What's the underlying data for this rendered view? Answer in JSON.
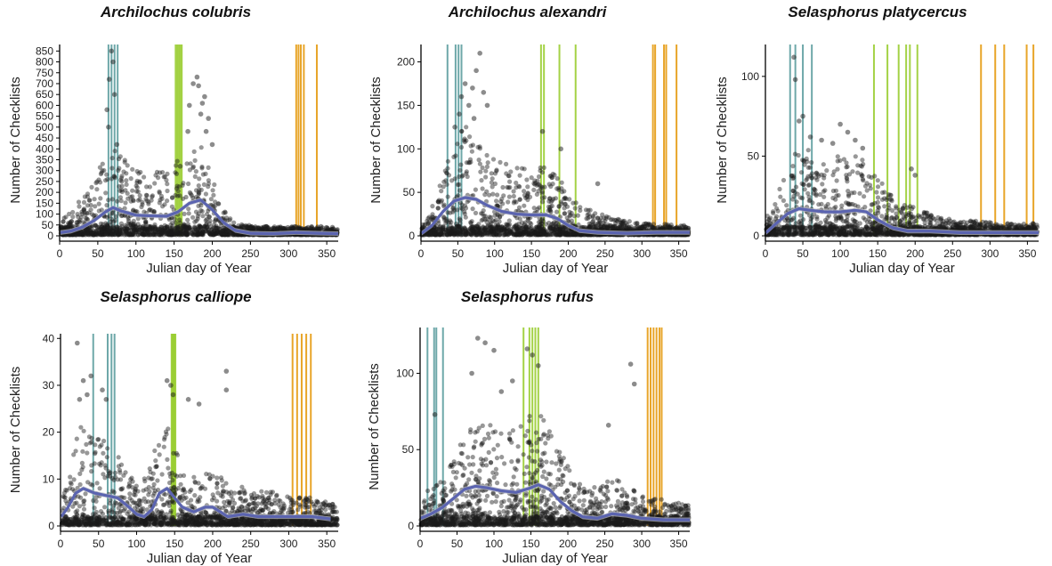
{
  "colors": {
    "points": "#1a1a1a",
    "smooth": "#5b64b0",
    "ribbon": "#b9bbc4",
    "spring": "#5e9ea0",
    "breeding": "#9acd32",
    "fall": "#e59b12"
  },
  "chart_data": [
    {
      "type": "scatter",
      "title": "Archilochus colubris",
      "xlabel": "Julian day of Year",
      "ylabel": "Number of Checklists",
      "xlim": [
        0,
        365
      ],
      "ylim": [
        0,
        880
      ],
      "xticks": [
        0,
        50,
        100,
        150,
        200,
        250,
        300,
        350
      ],
      "yticks": [
        0,
        50,
        100,
        150,
        200,
        250,
        300,
        350,
        400,
        450,
        500,
        550,
        600,
        650,
        700,
        750,
        800,
        850
      ],
      "smooth": [
        [
          1,
          15
        ],
        [
          15,
          22
        ],
        [
          30,
          40
        ],
        [
          45,
          70
        ],
        [
          60,
          110
        ],
        [
          70,
          130
        ],
        [
          80,
          115
        ],
        [
          100,
          95
        ],
        [
          120,
          92
        ],
        [
          140,
          90
        ],
        [
          155,
          110
        ],
        [
          170,
          150
        ],
        [
          185,
          165
        ],
        [
          200,
          120
        ],
        [
          215,
          60
        ],
        [
          230,
          25
        ],
        [
          250,
          12
        ],
        [
          280,
          10
        ],
        [
          310,
          15
        ],
        [
          340,
          12
        ],
        [
          365,
          10
        ]
      ],
      "spread": [
        [
          0,
          60
        ],
        [
          15,
          120
        ],
        [
          40,
          220
        ],
        [
          60,
          380
        ],
        [
          70,
          420
        ],
        [
          90,
          330
        ],
        [
          120,
          290
        ],
        [
          145,
          320
        ],
        [
          165,
          420
        ],
        [
          180,
          460
        ],
        [
          195,
          330
        ],
        [
          210,
          150
        ],
        [
          230,
          60
        ],
        [
          260,
          45
        ],
        [
          300,
          40
        ],
        [
          330,
          35
        ],
        [
          365,
          30
        ]
      ],
      "outliers": [
        [
          62,
          580
        ],
        [
          65,
          720
        ],
        [
          68,
          850
        ],
        [
          70,
          800
        ],
        [
          72,
          650
        ],
        [
          64,
          500
        ],
        [
          75,
          420
        ],
        [
          170,
          600
        ],
        [
          175,
          700
        ],
        [
          180,
          730
        ],
        [
          185,
          560
        ],
        [
          190,
          640
        ],
        [
          195,
          540
        ],
        [
          168,
          480
        ],
        [
          158,
          320
        ],
        [
          200,
          420
        ],
        [
          192,
          480
        ],
        [
          187,
          610
        ],
        [
          182,
          690
        ]
      ],
      "spring_lines": [
        64,
        68,
        72,
        76
      ],
      "breeding_lines": [
        152,
        154,
        156,
        158,
        160
      ],
      "fall_lines": [
        310,
        313,
        316,
        320,
        337
      ]
    },
    {
      "type": "scatter",
      "title": "Archilochus alexandri",
      "xlabel": "Julian day of Year",
      "ylabel": "Number of Checklists",
      "xlim": [
        0,
        365
      ],
      "ylim": [
        0,
        220
      ],
      "xticks": [
        0,
        50,
        100,
        150,
        200,
        250,
        300,
        350
      ],
      "yticks": [
        0,
        50,
        100,
        150,
        200
      ],
      "smooth": [
        [
          1,
          3
        ],
        [
          15,
          12
        ],
        [
          30,
          28
        ],
        [
          45,
          40
        ],
        [
          60,
          44
        ],
        [
          75,
          42
        ],
        [
          90,
          35
        ],
        [
          110,
          28
        ],
        [
          130,
          25
        ],
        [
          150,
          24
        ],
        [
          170,
          24
        ],
        [
          185,
          20
        ],
        [
          200,
          12
        ],
        [
          215,
          6
        ],
        [
          240,
          4
        ],
        [
          280,
          3
        ],
        [
          320,
          4
        ],
        [
          365,
          4
        ]
      ],
      "spread": [
        [
          0,
          15
        ],
        [
          15,
          35
        ],
        [
          30,
          70
        ],
        [
          45,
          110
        ],
        [
          60,
          130
        ],
        [
          75,
          125
        ],
        [
          90,
          100
        ],
        [
          110,
          85
        ],
        [
          130,
          80
        ],
        [
          150,
          80
        ],
        [
          170,
          80
        ],
        [
          190,
          65
        ],
        [
          210,
          40
        ],
        [
          230,
          30
        ],
        [
          260,
          20
        ],
        [
          300,
          15
        ],
        [
          330,
          14
        ],
        [
          365,
          12
        ]
      ],
      "outliers": [
        [
          55,
          160
        ],
        [
          60,
          175
        ],
        [
          65,
          150
        ],
        [
          70,
          170
        ],
        [
          80,
          210
        ],
        [
          85,
          165
        ],
        [
          75,
          190
        ],
        [
          52,
          140
        ],
        [
          90,
          150
        ],
        [
          165,
          120
        ],
        [
          190,
          100
        ],
        [
          240,
          60
        ],
        [
          46,
          125
        ],
        [
          72,
          135
        ]
      ],
      "spring_lines": [
        36,
        47,
        51,
        55
      ],
      "breeding_lines": [
        163,
        167,
        188,
        210
      ],
      "fall_lines": [
        315,
        318,
        330,
        333,
        347
      ]
    },
    {
      "type": "scatter",
      "title": "Selasphorus platycercus",
      "xlabel": "Julian day of Year",
      "ylabel": "Number of Checklists",
      "xlim": [
        0,
        365
      ],
      "ylim": [
        0,
        120
      ],
      "xticks": [
        0,
        50,
        100,
        150,
        200,
        250,
        300,
        350
      ],
      "yticks": [
        0,
        50,
        100
      ],
      "smooth": [
        [
          1,
          2
        ],
        [
          15,
          8
        ],
        [
          30,
          14
        ],
        [
          45,
          17
        ],
        [
          60,
          16
        ],
        [
          80,
          15
        ],
        [
          100,
          15
        ],
        [
          120,
          16
        ],
        [
          135,
          15
        ],
        [
          150,
          10
        ],
        [
          170,
          5
        ],
        [
          190,
          3
        ],
        [
          220,
          3
        ],
        [
          260,
          2
        ],
        [
          300,
          2
        ],
        [
          330,
          2
        ],
        [
          365,
          2
        ]
      ],
      "spread": [
        [
          0,
          10
        ],
        [
          15,
          25
        ],
        [
          30,
          45
        ],
        [
          45,
          55
        ],
        [
          60,
          55
        ],
        [
          80,
          50
        ],
        [
          100,
          50
        ],
        [
          120,
          50
        ],
        [
          140,
          45
        ],
        [
          160,
          30
        ],
        [
          180,
          20
        ],
        [
          200,
          18
        ],
        [
          230,
          12
        ],
        [
          270,
          10
        ],
        [
          310,
          8
        ],
        [
          340,
          8
        ],
        [
          365,
          8
        ]
      ],
      "outliers": [
        [
          38,
          112
        ],
        [
          40,
          98
        ],
        [
          45,
          72
        ],
        [
          50,
          75
        ],
        [
          60,
          62
        ],
        [
          100,
          70
        ],
        [
          110,
          65
        ],
        [
          120,
          60
        ],
        [
          195,
          42
        ],
        [
          200,
          38
        ],
        [
          130,
          55
        ],
        [
          90,
          58
        ],
        [
          75,
          60
        ]
      ],
      "spring_lines": [
        33,
        40,
        50,
        62
      ],
      "breeding_lines": [
        145,
        163,
        178,
        188,
        193,
        203
      ],
      "fall_lines": [
        288,
        307,
        319,
        349,
        358
      ]
    },
    {
      "type": "scatter",
      "title": "Selasphorus calliope",
      "xlabel": "Julian day of Year",
      "ylabel": "Number of Checklists",
      "xlim": [
        0,
        365
      ],
      "ylim": [
        0,
        41
      ],
      "xticks": [
        0,
        50,
        100,
        150,
        200,
        250,
        300,
        350
      ],
      "yticks": [
        0,
        10,
        20,
        30,
        40
      ],
      "smooth": [
        [
          1,
          2
        ],
        [
          10,
          4
        ],
        [
          20,
          7
        ],
        [
          30,
          8
        ],
        [
          45,
          7
        ],
        [
          60,
          6.5
        ],
        [
          75,
          6
        ],
        [
          90,
          4
        ],
        [
          100,
          2.5
        ],
        [
          110,
          2
        ],
        [
          120,
          3.5
        ],
        [
          130,
          7
        ],
        [
          140,
          8
        ],
        [
          150,
          6
        ],
        [
          160,
          4
        ],
        [
          175,
          3
        ],
        [
          190,
          4
        ],
        [
          200,
          4
        ],
        [
          210,
          3
        ],
        [
          220,
          2
        ],
        [
          240,
          2.5
        ],
        [
          260,
          2
        ],
        [
          300,
          2
        ],
        [
          330,
          2
        ],
        [
          355,
          1.5
        ]
      ],
      "spread": [
        [
          0,
          6
        ],
        [
          10,
          12
        ],
        [
          20,
          20
        ],
        [
          30,
          22
        ],
        [
          45,
          20
        ],
        [
          60,
          18
        ],
        [
          75,
          16
        ],
        [
          90,
          12
        ],
        [
          100,
          9
        ],
        [
          115,
          12
        ],
        [
          130,
          20
        ],
        [
          140,
          24
        ],
        [
          150,
          18
        ],
        [
          160,
          12
        ],
        [
          180,
          10
        ],
        [
          200,
          12
        ],
        [
          220,
          9
        ],
        [
          250,
          8
        ],
        [
          290,
          7
        ],
        [
          330,
          6
        ],
        [
          355,
          5
        ]
      ],
      "outliers": [
        [
          22,
          39
        ],
        [
          30,
          31
        ],
        [
          35,
          28
        ],
        [
          40,
          32
        ],
        [
          55,
          29
        ],
        [
          60,
          27
        ],
        [
          140,
          31
        ],
        [
          145,
          30
        ],
        [
          148,
          28
        ],
        [
          168,
          27
        ],
        [
          182,
          26
        ],
        [
          218,
          33
        ],
        [
          218,
          29
        ],
        [
          25,
          27
        ]
      ],
      "spring_lines": [
        43,
        62,
        67,
        71
      ],
      "breeding_lines": [
        146,
        147,
        148,
        149,
        150,
        151
      ],
      "fall_lines": [
        305,
        311,
        317,
        323,
        329
      ]
    },
    {
      "type": "scatter",
      "title": "Selasphorus rufus",
      "xlabel": "Julian day of Year",
      "ylabel": "Number of Checklists",
      "xlim": [
        0,
        365
      ],
      "ylim": [
        0,
        130
      ],
      "xticks": [
        0,
        50,
        100,
        150,
        200,
        250,
        300,
        350
      ],
      "yticks": [
        0,
        50,
        100
      ],
      "smooth": [
        [
          1,
          5
        ],
        [
          15,
          8
        ],
        [
          30,
          12
        ],
        [
          45,
          18
        ],
        [
          60,
          24
        ],
        [
          75,
          26
        ],
        [
          90,
          25
        ],
        [
          110,
          23
        ],
        [
          130,
          22
        ],
        [
          150,
          25
        ],
        [
          160,
          27
        ],
        [
          175,
          24
        ],
        [
          190,
          16
        ],
        [
          205,
          10
        ],
        [
          220,
          6
        ],
        [
          240,
          5
        ],
        [
          260,
          8
        ],
        [
          280,
          7
        ],
        [
          300,
          5
        ],
        [
          330,
          4
        ],
        [
          365,
          4
        ]
      ],
      "spread": [
        [
          0,
          20
        ],
        [
          15,
          25
        ],
        [
          30,
          30
        ],
        [
          45,
          45
        ],
        [
          60,
          60
        ],
        [
          75,
          70
        ],
        [
          90,
          70
        ],
        [
          110,
          65
        ],
        [
          130,
          65
        ],
        [
          150,
          75
        ],
        [
          165,
          75
        ],
        [
          180,
          60
        ],
        [
          200,
          40
        ],
        [
          220,
          25
        ],
        [
          250,
          30
        ],
        [
          270,
          30
        ],
        [
          300,
          20
        ],
        [
          330,
          18
        ],
        [
          365,
          15
        ]
      ],
      "outliers": [
        [
          78,
          123
        ],
        [
          88,
          120
        ],
        [
          100,
          115
        ],
        [
          145,
          116
        ],
        [
          152,
          112
        ],
        [
          160,
          105
        ],
        [
          285,
          106
        ],
        [
          290,
          93
        ],
        [
          20,
          73
        ],
        [
          255,
          66
        ],
        [
          125,
          95
        ],
        [
          70,
          100
        ],
        [
          110,
          88
        ]
      ],
      "spring_lines": [
        10,
        19,
        22,
        31
      ],
      "breeding_lines": [
        140,
        148,
        152,
        156,
        160
      ],
      "fall_lines": [
        308,
        312,
        316,
        320,
        324,
        327
      ]
    }
  ]
}
